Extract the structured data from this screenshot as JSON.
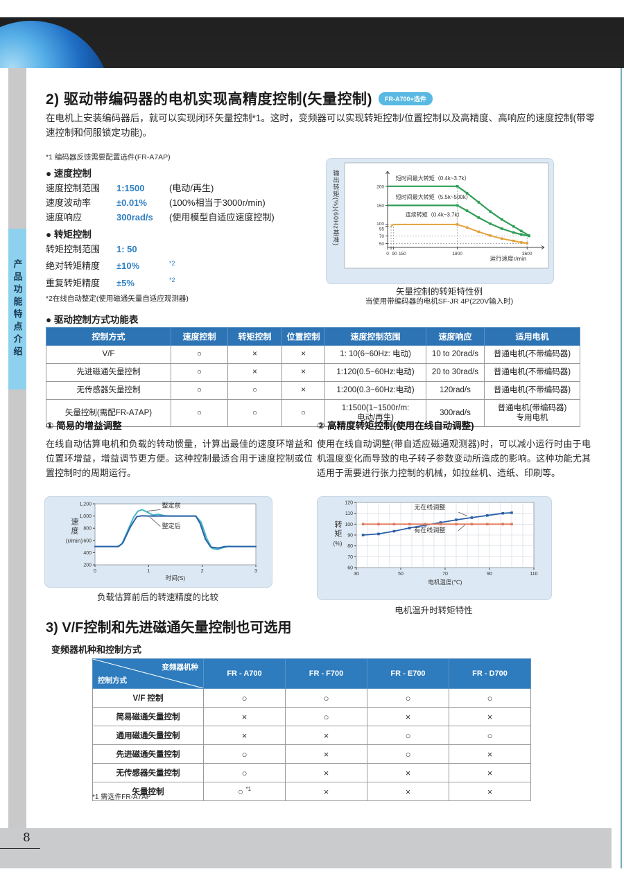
{
  "page": {
    "number": "8"
  },
  "sidebar": {
    "tab_label": "产品功能特点介绍"
  },
  "section2": {
    "title": "2) 驱动带编码器的电机实现高精度控制(矢量控制)",
    "badge": "FR-A700+选件",
    "intro": "在电机上安装编码器后，就可以实现闭环矢量控制*1。这时，变频器可以实现转矩控制/位置控制以及高精度、高响应的速度控制(带零速控制和伺服锁定功能)。",
    "note1": "*1 编码器反馈需要配置选件(FR-A7AP)",
    "specs": {
      "speed_heading": "● 速度控制",
      "speed_items": [
        {
          "label": "速度控制范围",
          "value": "1:1500",
          "note": "(电动/再生)"
        },
        {
          "label": "速度波动率",
          "value": "±0.01%",
          "note": "(100%相当于3000r/min)"
        },
        {
          "label": "速度响应",
          "value": "300rad/s",
          "note": "(使用模型自适应速度控制)"
        }
      ],
      "torque_heading": "● 转矩控制",
      "torque_items": [
        {
          "label": "转矩控制范围",
          "value": "1: 50",
          "note": ""
        },
        {
          "label": "绝对转矩精度",
          "value": "±10%",
          "sup": "*2",
          "note": ""
        },
        {
          "label": "重复转矩精度",
          "value": "±5%",
          "sup": "*2",
          "note": ""
        }
      ],
      "note2": "*2在线自动整定(使用磁通矢量自适应观测器)"
    }
  },
  "table1": {
    "heading": "● 驱动控制方式功能表",
    "headers": [
      "控制方式",
      "速度控制",
      "转矩控制",
      "位置控制",
      "速度控制范围",
      "速度响应",
      "适用电机"
    ],
    "rows": [
      [
        "V/F",
        "○",
        "×",
        "×",
        "1: 10(6~60Hz: 电动)",
        "10 to 20rad/s",
        "普通电机(不带编码器)"
      ],
      [
        "先进磁通矢量控制",
        "○",
        "×",
        "×",
        "1:120(0.5~60Hz:电动)",
        "20 to 30rad/s",
        "普通电机(不带编码器)"
      ],
      [
        "无传感器矢量控制",
        "○",
        "○",
        "×",
        "1:200(0.3~60Hz:电动)",
        "120rad/s",
        "普通电机(不带编码器)"
      ],
      [
        "矢量控制(需配FR-A7AP)",
        "○",
        "○",
        "○",
        "1:1500(1~1500r/m:\n电动/再生)",
        "300rad/s",
        "普通电机(带编码器)\n专用电机"
      ]
    ]
  },
  "sub_sections": [
    {
      "heading": "① 简易的增益调整",
      "body": "在线自动估算电机和负载的转动惯量，计算出最佳的速度环增益和位置环增益，增益调节更方便。这种控制最适合用于速度控制或位置控制时的周期运行。"
    },
    {
      "heading": "② 高精度转矩控制(使用在线自动调整)",
      "body": "使用在线自动调整(带自适应磁通观测器)时，可以减小运行时由于电机温度变化而导致的电子转子参数变动所造成的影响。这种功能尤其适用于需要进行张力控制的机械，如拉丝机、造纸、印刷等。"
    }
  ],
  "section3": {
    "title": "3) V/F控制和先进磁通矢量控制也可选用",
    "subtitle": "变频器机种和控制方式"
  },
  "table2": {
    "corner_top": "变频器机种",
    "corner_bottom": "控制方式",
    "headers": [
      "FR - A700",
      "FR - F700",
      "FR - E700",
      "FR - D700"
    ],
    "rows": [
      {
        "label": "V/F 控制",
        "values": [
          "○",
          "○",
          "○",
          "○"
        ]
      },
      {
        "label": "简易磁通矢量控制",
        "values": [
          "×",
          "○",
          "×",
          "×"
        ]
      },
      {
        "label": "通用磁通矢量控制",
        "values": [
          "×",
          "×",
          "○",
          "○"
        ]
      },
      {
        "label": "先进磁通矢量控制",
        "values": [
          "○",
          "×",
          "○",
          "×"
        ]
      },
      {
        "label": "无传感器矢量控制",
        "values": [
          "○",
          "×",
          "×",
          "×"
        ]
      },
      {
        "label": "矢量控制",
        "values": [
          "○ *1",
          "×",
          "×",
          "×"
        ]
      }
    ],
    "footnote": "*1 需选件FR-A7AP"
  },
  "chart_data": [
    {
      "type": "line",
      "title": "矢量控制的转矩特性例",
      "subtitle": "当使用带编码器的电机SF-JR 4P(220V输入时)",
      "xlabel": "运行速度r/min",
      "ylabel": "输出转矩(%)(60Hz基准)",
      "xdomain": [
        0,
        3900
      ],
      "ydomain": [
        40,
        225
      ],
      "xticks": [
        {
          "v": 0,
          "label": "0"
        },
        {
          "v": 90,
          "label": "90",
          "dx": 5
        },
        {
          "v": 150,
          "label": "150",
          "dx": 13
        },
        {
          "v": 1800,
          "label": "1800"
        },
        {
          "v": 3600,
          "label": "3600"
        }
      ],
      "yticks": [
        {
          "v": 200
        },
        {
          "v": 150
        },
        {
          "v": 100,
          "dy": -1.5
        },
        {
          "v": 95,
          "dy": 3.5
        },
        {
          "v": 70
        },
        {
          "v": 50
        }
      ],
      "series": [
        {
          "name": "短时间最大转矩（0.4k~3.7k）",
          "color": "#2f9e55",
          "width": 2.2,
          "marker": true,
          "marker_from": 1,
          "points": [
            [
              0,
              200
            ],
            [
              1800,
              200
            ],
            [
              2050,
              182
            ],
            [
              2350,
              158
            ],
            [
              2650,
              134
            ],
            [
              2950,
              113
            ],
            [
              3250,
              95
            ],
            [
              3450,
              83
            ],
            [
              3650,
              71
            ]
          ]
        },
        {
          "name": "短时间最大转矩（5.5k~500k）",
          "color": "#2f9e55",
          "width": 2.2,
          "marker": true,
          "marker_from": 1,
          "points": [
            [
              0,
              150
            ],
            [
              1800,
              150
            ],
            [
              2050,
              136
            ],
            [
              2350,
              118
            ],
            [
              2650,
              102
            ],
            [
              2950,
              89
            ],
            [
              3250,
              79
            ],
            [
              3450,
              74
            ],
            [
              3650,
              70
            ]
          ]
        },
        {
          "name": "连续转矩（0.4k~3.7k）",
          "color": "#e2a23c",
          "width": 2,
          "marker": true,
          "marker_from": 2,
          "points": [
            [
              90,
              95
            ],
            [
              150,
              100
            ],
            [
              1800,
              100
            ],
            [
              2050,
              92
            ],
            [
              2350,
              81
            ],
            [
              2650,
              71
            ],
            [
              2950,
              63
            ],
            [
              3250,
              57
            ],
            [
              3450,
              53
            ],
            [
              3600,
              51
            ]
          ]
        }
      ],
      "annotations": [
        {
          "x": 210,
          "y": 216,
          "text": "短时间最大转矩（0.4k~3.7k）",
          "size": 8
        },
        {
          "x": 210,
          "y": 167,
          "text": "短时间最大转矩（5.5k~500k）",
          "size": 8
        },
        {
          "x": 460,
          "y": 121,
          "text": "连续转矩（0.4k~3.7k）",
          "size": 8
        }
      ],
      "guides_h": [
        {
          "y": 100,
          "x1": 0,
          "x2": 150
        },
        {
          "y": 95,
          "x1": 0,
          "x2": 90
        },
        {
          "y": 70,
          "x1": 0,
          "x2": 3600
        },
        {
          "y": 50,
          "x1": 0,
          "x2": 3600
        }
      ],
      "guides_v": [
        {
          "x": 90,
          "y1": 40,
          "y2": 95
        },
        {
          "x": 150,
          "y1": 40,
          "y2": 100
        },
        {
          "x": 1800,
          "y1": 40,
          "y2": 200
        },
        {
          "x": 3600,
          "y1": 40,
          "y2": 70
        }
      ]
    },
    {
      "type": "line",
      "title": "负载估算前后的转速精度的比较",
      "xlabel": "时间(S)",
      "ylabel": "速度",
      "ylabel_unit": "(r/min)",
      "xdomain": [
        0,
        3
      ],
      "ydomain": [
        200,
        1200
      ],
      "xticks": [
        {
          "v": 0,
          "label": "0"
        },
        {
          "v": 1,
          "label": "1"
        },
        {
          "v": 2,
          "label": "2"
        },
        {
          "v": 3,
          "label": "3"
        }
      ],
      "yticks": [
        {
          "v": 200,
          "label": "200"
        },
        {
          "v": 400,
          "label": "400"
        },
        {
          "v": 600,
          "label": "600"
        },
        {
          "v": 800,
          "label": "800"
        },
        {
          "v": 1000,
          "label": "1,000"
        },
        {
          "v": 1200,
          "label": "1,200"
        }
      ],
      "series": [
        {
          "name": "整定前",
          "color": "#45b4c6",
          "width": 2,
          "points": [
            [
              0,
              500
            ],
            [
              0.42,
              500
            ],
            [
              0.5,
              540
            ],
            [
              0.62,
              780
            ],
            [
              0.72,
              980
            ],
            [
              0.8,
              1080
            ],
            [
              0.88,
              1105
            ],
            [
              0.98,
              1060
            ],
            [
              1.08,
              1015
            ],
            [
              1.18,
              1030
            ],
            [
              1.3,
              1005
            ],
            [
              1.45,
              1000
            ],
            [
              1.88,
              1000
            ],
            [
              1.98,
              900
            ],
            [
              2.08,
              640
            ],
            [
              2.18,
              470
            ],
            [
              2.28,
              450
            ],
            [
              2.38,
              480
            ],
            [
              2.5,
              505
            ],
            [
              2.6,
              500
            ],
            [
              3,
              500
            ]
          ]
        },
        {
          "name": "整定后",
          "color": "#2a62a8",
          "width": 2,
          "points": [
            [
              0,
              500
            ],
            [
              0.44,
              500
            ],
            [
              0.52,
              560
            ],
            [
              0.66,
              820
            ],
            [
              0.78,
              990
            ],
            [
              0.88,
              1005
            ],
            [
              1.0,
              1000
            ],
            [
              1.88,
              1000
            ],
            [
              1.96,
              880
            ],
            [
              2.06,
              620
            ],
            [
              2.16,
              490
            ],
            [
              2.3,
              475
            ],
            [
              2.42,
              500
            ],
            [
              3,
              500
            ]
          ]
        }
      ],
      "annotations": [
        {
          "x": 1.25,
          "y": 1140,
          "text": "整定前",
          "size": 9
        },
        {
          "x": 1.25,
          "y": 800,
          "text": "整定后",
          "size": 9
        }
      ],
      "leaders": [
        {
          "x1": 1.22,
          "y1": 1105,
          "x2": 0.97,
          "y2": 1080
        },
        {
          "x1": 1.22,
          "y1": 830,
          "x2": 1.02,
          "y2": 985
        }
      ]
    },
    {
      "type": "line",
      "title": "电机温升时转矩特性",
      "xlabel": "电机温度(℃)",
      "ylabel": "转矩",
      "ylabel_unit": "(%)",
      "xdomain": [
        30,
        110
      ],
      "ydomain": [
        60,
        120
      ],
      "xticks": [
        {
          "v": 30,
          "label": "30"
        },
        {
          "v": 50,
          "label": "50"
        },
        {
          "v": 70,
          "label": "70"
        },
        {
          "v": 90,
          "label": "90"
        },
        {
          "v": 110,
          "label": "110"
        }
      ],
      "yticks": [
        {
          "v": 60
        },
        {
          "v": 70
        },
        {
          "v": 80
        },
        {
          "v": 90
        },
        {
          "v": 100
        },
        {
          "v": 110
        },
        {
          "v": 120
        }
      ],
      "grid_x": [
        35,
        40,
        45,
        50,
        55,
        60,
        65,
        70,
        75,
        80,
        85,
        90,
        95,
        100,
        105
      ],
      "grid_y": [
        70,
        80,
        90,
        100,
        110
      ],
      "series": [
        {
          "name": "无在线调整",
          "color": "#2a5fa8",
          "width": 1.8,
          "marker": true,
          "points": [
            [
              33,
              90
            ],
            [
              40,
              91
            ],
            [
              47,
              93.5
            ],
            [
              54,
              96.5
            ],
            [
              61,
              99
            ],
            [
              68,
              101.5
            ],
            [
              75,
              104
            ],
            [
              82,
              106
            ],
            [
              89,
              108
            ],
            [
              96,
              110
            ],
            [
              100,
              110.5
            ]
          ]
        },
        {
          "name": "有在线调整",
          "color": "#e2795b",
          "width": 1.8,
          "marker": true,
          "points": [
            [
              33,
              100
            ],
            [
              40,
              100
            ],
            [
              47,
              100
            ],
            [
              54,
              100
            ],
            [
              61,
              100
            ],
            [
              68,
              100
            ],
            [
              75,
              100
            ],
            [
              82,
              100
            ],
            [
              89,
              100
            ],
            [
              96,
              100
            ],
            [
              100,
              100
            ]
          ]
        }
      ],
      "annotations": [
        {
          "x": 56,
          "y": 113.5,
          "text": "无在线调整",
          "size": 9
        },
        {
          "x": 56,
          "y": 92.5,
          "text": "有在线调整",
          "size": 9
        }
      ],
      "leaders": [
        {
          "x1": 76,
          "y1": 111,
          "x2": 80,
          "y2": 107.5
        },
        {
          "x1": 76,
          "y1": 94,
          "x2": 79,
          "y2": 99.5
        }
      ]
    }
  ]
}
